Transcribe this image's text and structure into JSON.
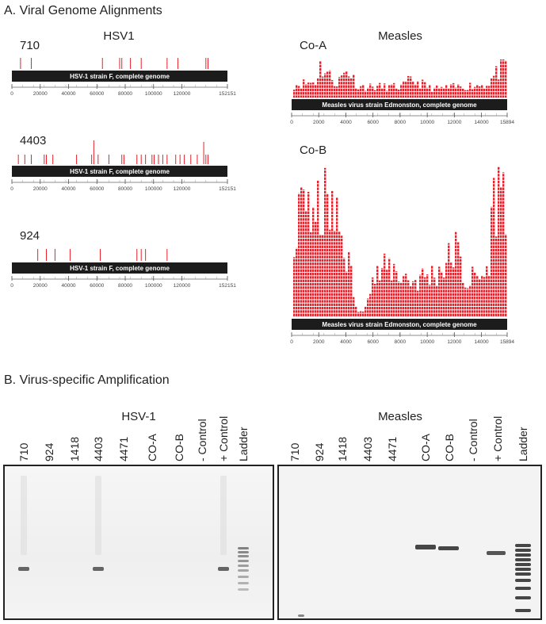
{
  "panel_a": {
    "title": "A.  Viral Genome Alignments",
    "hsv1": {
      "title": "HSV1",
      "genome_label": "HSV-1 strain F, complete genome",
      "axis_ticks": [
        "0",
        "20000",
        "40000",
        "60000",
        "80000",
        "100000",
        "120000",
        "152151"
      ],
      "samples": [
        "710",
        "4403",
        "924"
      ]
    },
    "measles": {
      "title": "Measles",
      "genome_label": "Measles virus strain Edmonston, complete genome",
      "axis_ticks": [
        "0",
        "2000",
        "4000",
        "6000",
        "8000",
        "10000",
        "12000",
        "14000",
        "15894"
      ],
      "samples": [
        "Co-A",
        "Co-B"
      ]
    }
  },
  "panel_b": {
    "title": "B.  Virus-specific Amplification",
    "hsv1": {
      "title": "HSV-1",
      "lanes": [
        "710",
        "924",
        "1418",
        "4403",
        "4471",
        "CO-A",
        "CO-B",
        "- Control",
        "+ Control",
        "Ladder"
      ]
    },
    "measles": {
      "title": "Measles",
      "lanes": [
        "710",
        "924",
        "1418",
        "4403",
        "4471",
        "CO-A",
        "CO-B",
        "- Control",
        "+ Control",
        "Ladder"
      ]
    }
  }
}
